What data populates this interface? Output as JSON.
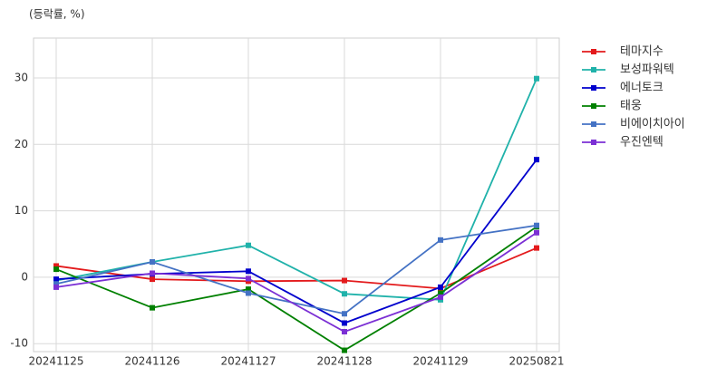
{
  "chart_data": {
    "type": "line",
    "annotation": "(등락률, %)",
    "categories": [
      "20241125",
      "20241126",
      "20241127",
      "20241128",
      "20241129",
      "20250821"
    ],
    "series": [
      {
        "name": "테마지수",
        "color": "#e31a1c",
        "values": [
          1.7,
          -0.3,
          -0.6,
          -0.5,
          -1.7,
          4.4
        ]
      },
      {
        "name": "보성파워텍",
        "color": "#20b2aa",
        "values": [
          -0.5,
          2.3,
          4.8,
          -2.5,
          -3.4,
          29.9
        ]
      },
      {
        "name": "에너토크",
        "color": "#0000cd",
        "values": [
          -0.3,
          0.5,
          0.9,
          -6.9,
          -1.5,
          17.7
        ]
      },
      {
        "name": "태웅",
        "color": "#008000",
        "values": [
          1.2,
          -4.6,
          -1.8,
          -11.0,
          -2.4,
          7.6
        ]
      },
      {
        "name": "비에이치아이",
        "color": "#4472c4",
        "values": [
          -1.0,
          2.3,
          -2.4,
          -5.5,
          5.6,
          7.8
        ]
      },
      {
        "name": "우진엔텍",
        "color": "#7b2fd4",
        "values": [
          -1.5,
          0.6,
          -0.2,
          -8.2,
          -3.0,
          6.7
        ]
      }
    ],
    "ylim": [
      -11.2,
      36
    ],
    "yticks": [
      -10,
      0,
      10,
      20,
      30
    ],
    "grid": true,
    "legend": "right"
  }
}
